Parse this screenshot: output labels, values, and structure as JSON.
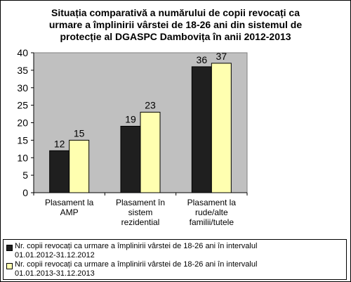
{
  "chart_data": {
    "type": "bar",
    "title_lines": [
      "Situația comparativă a numărului de copii revocați ca",
      "urmare a împlinirii vârstei de 18-26 ani din sistemul de",
      "protecție al DGASPC Dambovița în anii 2012-2013"
    ],
    "categories": [
      [
        "Plasament la",
        "AMP"
      ],
      [
        "Plasament în",
        "sistem",
        "rezidential"
      ],
      [
        "Plasament la",
        "rude/alte",
        "familii/tutele"
      ]
    ],
    "series": [
      {
        "name": "Nr. copii revocați ca urmare a împlinirii vârstei de 18-26 ani în intervalul 01.01.2012-31.12.2012",
        "name_lines": [
          "Nr. copii revocați ca urmare a împlinirii vârstei de 18-26 ani în intervalul",
          "01.01.2012-31.12.2012"
        ],
        "values": [
          12,
          19,
          36
        ],
        "color": "#1f1f1f"
      },
      {
        "name": "Nr. copii revocați ca urmare a împlinirii vârstei de 18-26 ani în intervalul 01.01.2013-31.12.2013",
        "name_lines": [
          "Nr. copii revocați ca urmare a împlinirii vârstei de 18-26 ani în intervalul",
          "01.01.2013-31.12.2013"
        ],
        "values": [
          15,
          23,
          37
        ],
        "color": "#ffffb0"
      }
    ],
    "ylim": [
      0,
      40
    ],
    "yticks": [
      "0",
      "5",
      "10",
      "15",
      "20",
      "25",
      "30",
      "35",
      "40"
    ],
    "grid": false,
    "plot_background": "#c0c0c0",
    "legend_position": "bottom"
  }
}
